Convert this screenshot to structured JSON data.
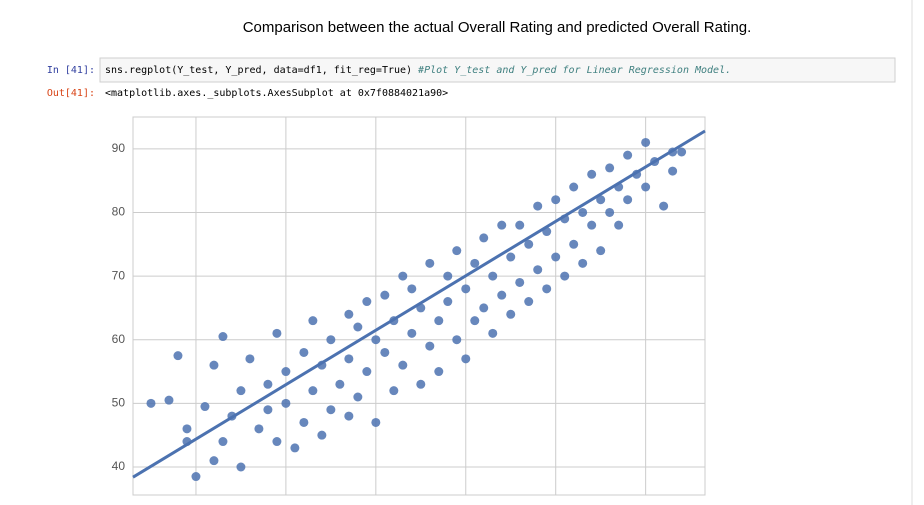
{
  "header": {
    "title": "Comparison between the actual Overall Rating and predicted Overall Rating."
  },
  "cell": {
    "in_prompt": "In [41]:",
    "code": "sns.regplot(Y_test, Y_pred, data=df1, fit_reg=True)",
    "comment": "#Plot Y_test and Y_pred for Linear Regression Model.",
    "out_prompt": "Out[41]:",
    "output": "<matplotlib.axes._subplots.AxesSubplot at 0x7f0884021a90>"
  },
  "chart_data": {
    "type": "scatter",
    "color": "#4c72b0",
    "grid": true,
    "xlim": [
      43,
      106.6
    ],
    "xticks": [
      50,
      60,
      70,
      80,
      90,
      100
    ],
    "ylim": [
      35.6,
      95
    ],
    "yticks": [
      40,
      50,
      60,
      70,
      80,
      90
    ],
    "regression_line": {
      "x": [
        43,
        106.6
      ],
      "y": [
        38.4,
        92.8
      ]
    },
    "series": [
      {
        "x": [
          45,
          47,
          48,
          49,
          49,
          50,
          51,
          52,
          52,
          53,
          53,
          54,
          55,
          55,
          56,
          57,
          58,
          58,
          59,
          59,
          60,
          60,
          61,
          62,
          62,
          63,
          63,
          64,
          64,
          65,
          65,
          66,
          67,
          67,
          67,
          68,
          68,
          69,
          69,
          70,
          70,
          71,
          71,
          72,
          72,
          73,
          73,
          74,
          74,
          75,
          75,
          76,
          76,
          77,
          77,
          78,
          78,
          79,
          79,
          80,
          80,
          81,
          81,
          82,
          82,
          83,
          83,
          84,
          84,
          85,
          85,
          86,
          86,
          87,
          87,
          88,
          88,
          89,
          89,
          90,
          90,
          91,
          91,
          92,
          92,
          93,
          93,
          94,
          94,
          95,
          95,
          96,
          96,
          97,
          97,
          98,
          98,
          99,
          100,
          100,
          101,
          102,
          103,
          104,
          103
        ],
        "values": [
          50,
          50.5,
          57.5,
          44,
          46,
          38.5,
          49.5,
          56,
          41,
          60.5,
          44,
          48,
          52,
          40,
          57,
          46,
          53,
          49,
          61,
          44,
          55,
          50,
          43,
          58,
          47,
          63,
          52,
          56,
          45,
          60,
          49,
          53,
          64,
          57,
          48,
          62,
          51,
          66,
          55,
          47,
          60,
          67,
          58,
          52,
          63,
          70,
          56,
          61,
          68,
          53,
          65,
          72,
          59,
          63,
          55,
          70,
          66,
          74,
          60,
          57,
          68,
          72,
          63,
          76,
          65,
          70,
          61,
          78,
          67,
          73,
          64,
          78,
          69,
          75,
          66,
          81,
          71,
          77,
          68,
          82,
          73,
          79,
          70,
          84,
          75,
          80,
          72,
          86,
          78,
          82,
          74,
          87,
          80,
          84,
          78,
          89,
          82,
          86,
          91,
          84,
          88,
          81,
          89.5,
          89.5,
          86.5
        ]
      }
    ]
  }
}
